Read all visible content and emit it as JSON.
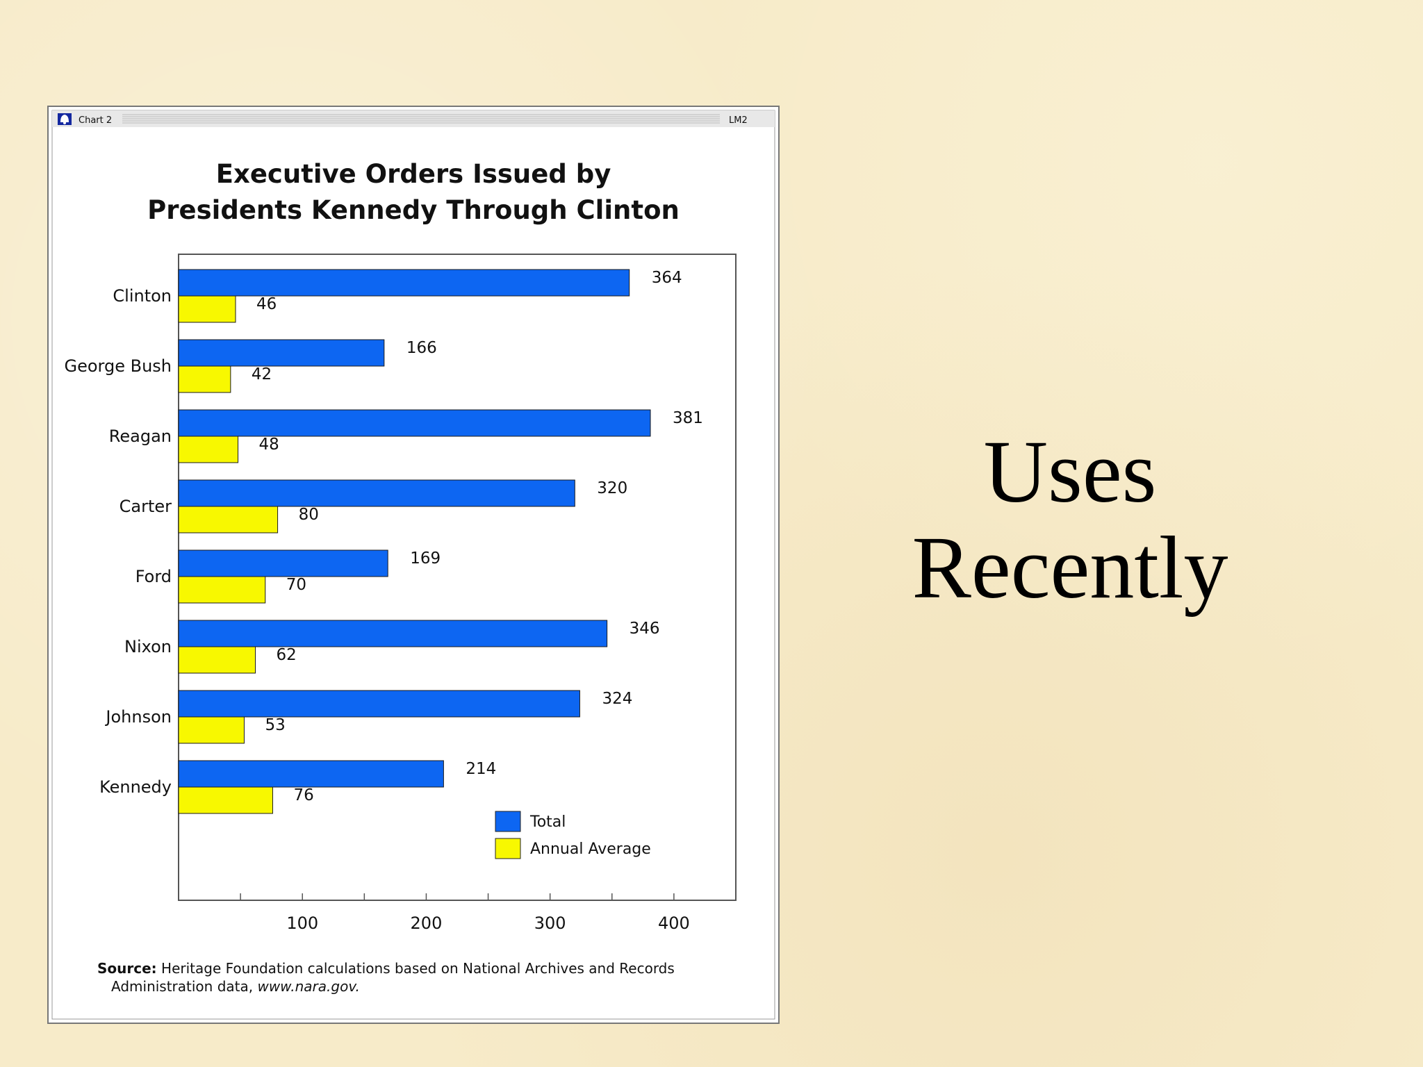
{
  "slide": {
    "line1": "Uses",
    "line2": "Recently"
  },
  "window": {
    "title": "Chart 2",
    "tag": "LM2",
    "icon": "bell-icon"
  },
  "colors": {
    "total": "#0d66f2",
    "annual": "#f8f800"
  },
  "chart_data": {
    "type": "bar",
    "orientation": "horizontal",
    "title_line1": "Executive Orders Issued by",
    "title_line2": "Presidents Kennedy Through Clinton",
    "categories": [
      "Clinton",
      "George Bush",
      "Reagan",
      "Carter",
      "Ford",
      "Nixon",
      "Johnson",
      "Kennedy"
    ],
    "series": [
      {
        "name": "Total",
        "values": [
          364,
          166,
          381,
          320,
          169,
          346,
          324,
          214
        ]
      },
      {
        "name": "Annual Average",
        "values": [
          46,
          42,
          48,
          80,
          70,
          62,
          53,
          76
        ]
      }
    ],
    "xlim": [
      0,
      450
    ],
    "ticks": [
      50,
      100,
      150,
      200,
      250,
      300,
      350,
      400
    ],
    "tick_labels": [
      "100",
      "200",
      "300",
      "400"
    ],
    "legend_position": "bottom-right",
    "grid": false,
    "source_label": "Source:",
    "source_line1": "Heritage Foundation calculations based on National Archives and Records",
    "source_line2_text": "Administration data, ",
    "source_line2_url": "www.nara.gov."
  }
}
